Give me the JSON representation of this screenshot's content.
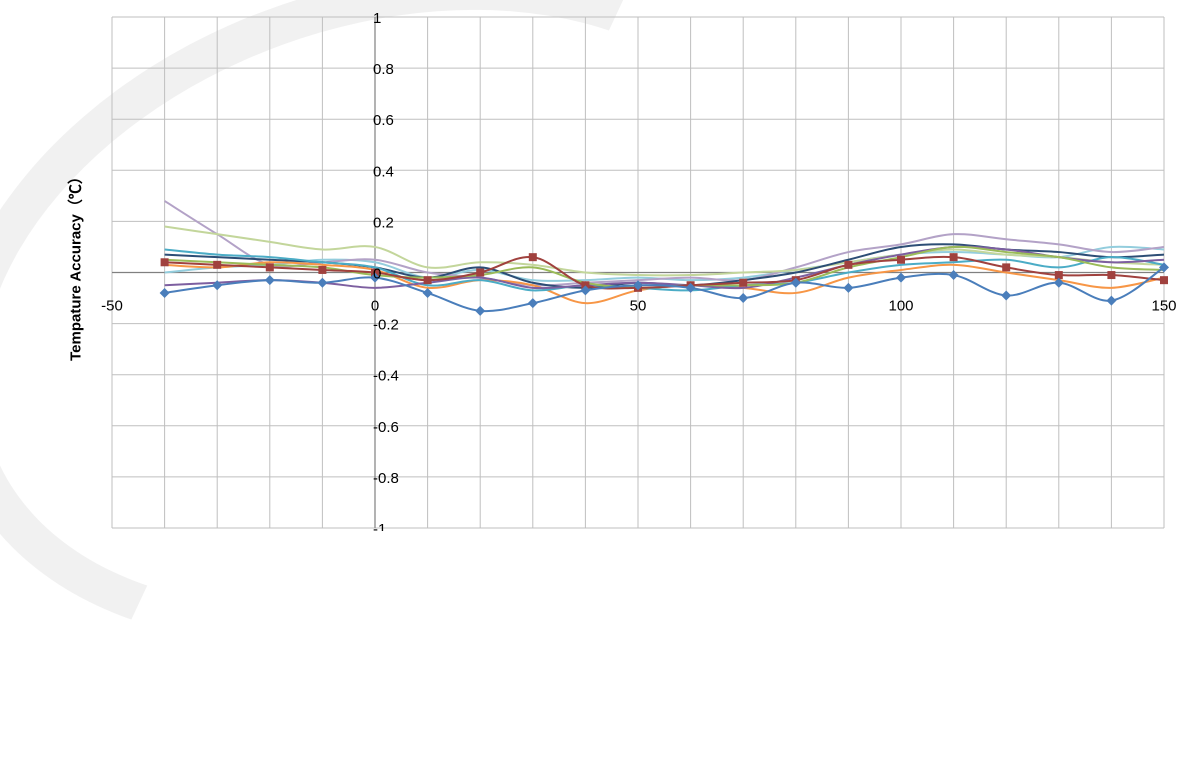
{
  "chart_data": {
    "type": "line",
    "title": "",
    "xlabel": "",
    "ylabel": "Tempature Accuracy（℃）",
    "xlim": [
      -50,
      150
    ],
    "ylim": [
      -1,
      1
    ],
    "x_tick_labels": [
      "-50",
      "0",
      "50",
      "100",
      "150"
    ],
    "y_tick_labels": [
      "1",
      "0.8",
      "0.6",
      "0.4",
      "0.2",
      "0",
      "-0.2",
      "-0.4",
      "-0.6",
      "-0.8",
      "-1"
    ],
    "grid": true,
    "legend": "none",
    "x": [
      -40,
      -30,
      -20,
      -10,
      0,
      10,
      20,
      30,
      40,
      50,
      60,
      70,
      80,
      90,
      100,
      110,
      120,
      130,
      140,
      150
    ],
    "series": [
      {
        "color": "#4a7ebb",
        "marker": "diamond",
        "values": [
          -0.08,
          -0.05,
          -0.03,
          -0.04,
          -0.02,
          -0.08,
          -0.15,
          -0.12,
          -0.07,
          -0.05,
          -0.06,
          -0.1,
          -0.04,
          -0.06,
          -0.02,
          -0.01,
          -0.09,
          -0.04,
          -0.11,
          0.02
        ]
      },
      {
        "color": "#a0413e",
        "marker": "square",
        "values": [
          0.04,
          0.03,
          0.02,
          0.01,
          0.0,
          -0.03,
          0.0,
          0.06,
          -0.05,
          -0.06,
          -0.05,
          -0.04,
          -0.03,
          0.03,
          0.05,
          0.06,
          0.02,
          -0.01,
          -0.01,
          -0.03
        ]
      },
      {
        "color": "#9bbb59",
        "values": [
          0.05,
          0.04,
          0.03,
          0.02,
          -0.01,
          -0.02,
          -0.01,
          0.02,
          -0.04,
          -0.06,
          -0.05,
          -0.05,
          -0.04,
          0.02,
          0.06,
          0.1,
          0.08,
          0.06,
          0.02,
          0.01
        ]
      },
      {
        "color": "#7d5fa0",
        "values": [
          -0.05,
          -0.04,
          -0.03,
          -0.04,
          -0.06,
          -0.04,
          -0.02,
          -0.06,
          -0.05,
          -0.04,
          -0.05,
          -0.06,
          -0.02,
          0.03,
          0.07,
          0.1,
          0.09,
          0.06,
          0.04,
          0.05
        ]
      },
      {
        "color": "#4bacc6",
        "values": [
          0.09,
          0.07,
          0.06,
          0.04,
          0.02,
          -0.05,
          -0.03,
          -0.07,
          -0.05,
          -0.06,
          -0.07,
          -0.05,
          -0.04,
          0.0,
          0.03,
          0.04,
          0.05,
          0.02,
          0.06,
          0.03
        ]
      },
      {
        "color": "#f79646",
        "values": [
          0.03,
          0.02,
          0.04,
          0.03,
          0.01,
          -0.06,
          -0.03,
          -0.05,
          -0.12,
          -0.07,
          -0.05,
          -0.06,
          -0.08,
          -0.02,
          0.01,
          0.03,
          0.0,
          -0.03,
          -0.06,
          -0.02
        ]
      },
      {
        "color": "#2c4d75",
        "values": [
          0.07,
          0.06,
          0.05,
          0.04,
          0.02,
          -0.02,
          0.02,
          -0.04,
          -0.06,
          -0.04,
          -0.05,
          -0.03,
          0.0,
          0.05,
          0.1,
          0.11,
          0.09,
          0.08,
          0.06,
          0.07
        ]
      },
      {
        "color": "#c3d69b",
        "values": [
          0.18,
          0.15,
          0.12,
          0.09,
          0.1,
          0.02,
          0.04,
          0.03,
          0.0,
          -0.01,
          -0.01,
          0.0,
          0.01,
          0.04,
          0.07,
          0.09,
          0.07,
          0.06,
          0.04,
          0.03
        ]
      },
      {
        "color": "#b3a2c7",
        "values": [
          0.28,
          0.15,
          0.03,
          0.04,
          0.05,
          0.0,
          -0.02,
          -0.05,
          -0.04,
          -0.03,
          -0.02,
          -0.03,
          0.02,
          0.08,
          0.11,
          0.15,
          0.13,
          0.11,
          0.08,
          0.1
        ]
      },
      {
        "color": "#93cddd",
        "values": [
          0.0,
          0.02,
          0.03,
          0.05,
          0.04,
          -0.02,
          0.01,
          -0.03,
          -0.03,
          -0.02,
          -0.03,
          -0.02,
          0.01,
          0.04,
          0.07,
          0.08,
          0.07,
          0.06,
          0.1,
          0.09
        ]
      }
    ]
  }
}
